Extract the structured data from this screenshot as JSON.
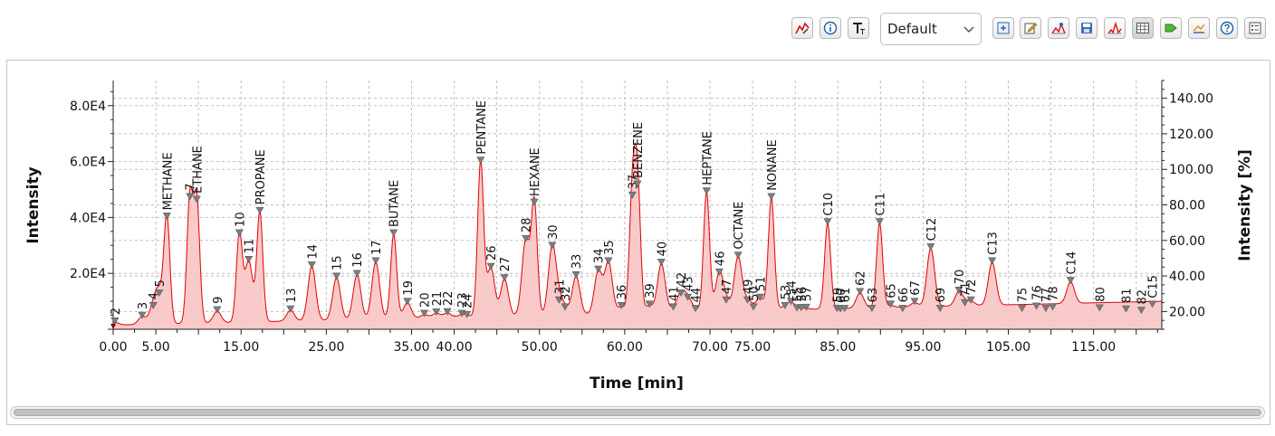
{
  "toolbar": {
    "left_icons": [
      "chart-settings-icon",
      "info-icon",
      "text-format-icon"
    ],
    "selected_view": "Default",
    "right_icons": [
      "add-window-icon",
      "edit-icon",
      "peak-detect-icon",
      "save-icon",
      "overlay-icon",
      "table-icon",
      "tag-icon",
      "compare-icon",
      "help-icon",
      "list-icon"
    ]
  },
  "colors": {
    "line": "#e00000",
    "fill": "#f8c4c4",
    "marker": "#7d7d7d",
    "grid": "#bfbfbf"
  },
  "chart_data": {
    "type": "area",
    "xlabel": "Time [min]",
    "ylabel": "Intensity",
    "y2label": "Intensity [%]",
    "xlim": [
      0,
      123
    ],
    "ylim": [
      0,
      89000
    ],
    "y2lim": [
      10,
      150
    ],
    "grid": true,
    "x_ticks": [
      "0.00",
      "5.00",
      "15.00",
      "25.00",
      "35.00",
      "40.00",
      "50.00",
      "60.00",
      "70.00",
      "75.00",
      "85.00",
      "95.00",
      "105.00",
      "115.00"
    ],
    "x_tick_values": [
      0,
      5,
      15,
      25,
      35,
      40,
      50,
      60,
      70,
      75,
      85,
      95,
      105,
      115
    ],
    "y_ticks": [
      "2.0E4",
      "4.0E4",
      "6.0E4",
      "8.0E4"
    ],
    "y_tick_values": [
      20000,
      40000,
      60000,
      80000
    ],
    "y2_ticks": [
      "20.00",
      "40.00",
      "60.00",
      "80.00",
      "100.00",
      "120.00",
      "140.00"
    ],
    "y2_tick_values": [
      20,
      40,
      60,
      80,
      100,
      120,
      140
    ],
    "baseline_start": 1500,
    "baseline_end": 10000,
    "peaks": [
      {
        "label": "2",
        "x": 0.2,
        "y": 2500
      },
      {
        "label": "3",
        "x": 3.4,
        "y": 4500
      },
      {
        "label": "4",
        "x": 4.7,
        "y": 8000
      },
      {
        "label": "5",
        "x": 5.4,
        "y": 12500
      },
      {
        "label": "METHANE",
        "x": 6.3,
        "y": 40000
      },
      {
        "label": "7",
        "x": 9.0,
        "y": 47000
      },
      {
        "label": "ETHANE",
        "x": 9.8,
        "y": 46000
      },
      {
        "label": "9",
        "x": 12.2,
        "y": 6500
      },
      {
        "label": "10",
        "x": 14.8,
        "y": 34000
      },
      {
        "label": "11",
        "x": 15.9,
        "y": 24500
      },
      {
        "label": "PROPANE",
        "x": 17.2,
        "y": 42000
      },
      {
        "label": "13",
        "x": 20.8,
        "y": 6800
      },
      {
        "label": "14",
        "x": 23.3,
        "y": 22500
      },
      {
        "label": "15",
        "x": 26.2,
        "y": 18500
      },
      {
        "label": "16",
        "x": 28.6,
        "y": 19500
      },
      {
        "label": "17",
        "x": 30.8,
        "y": 24000
      },
      {
        "label": "BUTANE",
        "x": 32.9,
        "y": 34000
      },
      {
        "label": "19",
        "x": 34.5,
        "y": 9500
      },
      {
        "label": "20",
        "x": 36.5,
        "y": 5200
      },
      {
        "label": "21",
        "x": 37.9,
        "y": 5700
      },
      {
        "label": "22",
        "x": 39.2,
        "y": 5800
      },
      {
        "label": "23",
        "x": 40.9,
        "y": 5200
      },
      {
        "label": "24",
        "x": 41.5,
        "y": 4800
      },
      {
        "label": "PENTANE",
        "x": 43.1,
        "y": 60000
      },
      {
        "label": "26",
        "x": 44.3,
        "y": 22000
      },
      {
        "label": "27",
        "x": 45.9,
        "y": 18000
      },
      {
        "label": "28",
        "x": 48.4,
        "y": 32000
      },
      {
        "label": "HEXANE",
        "x": 49.4,
        "y": 45000
      },
      {
        "label": "30",
        "x": 51.5,
        "y": 29500
      },
      {
        "label": "31",
        "x": 52.3,
        "y": 10000
      },
      {
        "label": "32",
        "x": 53.0,
        "y": 7500
      },
      {
        "label": "33",
        "x": 54.3,
        "y": 19000
      },
      {
        "label": "34",
        "x": 56.9,
        "y": 21000
      },
      {
        "label": "35",
        "x": 58.1,
        "y": 24000
      },
      {
        "label": "36",
        "x": 59.6,
        "y": 8000
      },
      {
        "label": "37",
        "x": 60.9,
        "y": 47500
      },
      {
        "label": "BENZENE",
        "x": 61.5,
        "y": 51500
      },
      {
        "label": "39",
        "x": 62.9,
        "y": 8500
      },
      {
        "label": "40",
        "x": 64.3,
        "y": 23500
      },
      {
        "label": "41",
        "x": 65.7,
        "y": 7500
      },
      {
        "label": "42",
        "x": 66.6,
        "y": 12500
      },
      {
        "label": "43",
        "x": 67.4,
        "y": 11000
      },
      {
        "label": "44",
        "x": 68.3,
        "y": 7000
      },
      {
        "label": "HEPTANE",
        "x": 69.6,
        "y": 49000
      },
      {
        "label": "46",
        "x": 71.1,
        "y": 20000
      },
      {
        "label": "47",
        "x": 71.9,
        "y": 10000
      },
      {
        "label": "OCTANE",
        "x": 73.3,
        "y": 26000
      },
      {
        "label": "49",
        "x": 74.4,
        "y": 10000
      },
      {
        "label": "50",
        "x": 75.1,
        "y": 7500
      },
      {
        "label": "51",
        "x": 75.9,
        "y": 11000
      },
      {
        "label": "NONANE",
        "x": 77.2,
        "y": 47000
      },
      {
        "label": "53",
        "x": 78.8,
        "y": 8000
      },
      {
        "label": "54",
        "x": 79.5,
        "y": 9500
      },
      {
        "label": "55",
        "x": 80.2,
        "y": 7200
      },
      {
        "label": "56",
        "x": 80.7,
        "y": 7300
      },
      {
        "label": "57",
        "x": 81.3,
        "y": 7400
      },
      {
        "label": "C10",
        "x": 83.8,
        "y": 38000
      },
      {
        "label": "59",
        "x": 84.9,
        "y": 7000
      },
      {
        "label": "60",
        "x": 85.3,
        "y": 6800
      },
      {
        "label": "61",
        "x": 85.8,
        "y": 7000
      },
      {
        "label": "62",
        "x": 87.6,
        "y": 13000
      },
      {
        "label": "63",
        "x": 89.0,
        "y": 7000
      },
      {
        "label": "C11",
        "x": 89.9,
        "y": 38000
      },
      {
        "label": "65",
        "x": 91.2,
        "y": 8500
      },
      {
        "label": "66",
        "x": 92.6,
        "y": 7000
      },
      {
        "label": "67",
        "x": 94.0,
        "y": 9500
      },
      {
        "label": "C12",
        "x": 95.9,
        "y": 29000
      },
      {
        "label": "69",
        "x": 97.0,
        "y": 7000
      },
      {
        "label": "70",
        "x": 99.2,
        "y": 13500
      },
      {
        "label": "71",
        "x": 99.9,
        "y": 9000
      },
      {
        "label": "72",
        "x": 100.6,
        "y": 10000
      },
      {
        "label": "C13",
        "x": 103.1,
        "y": 24000
      },
      {
        "label": "75",
        "x": 106.6,
        "y": 7000
      },
      {
        "label": "76",
        "x": 108.3,
        "y": 7800
      },
      {
        "label": "77",
        "x": 109.4,
        "y": 7000
      },
      {
        "label": "78",
        "x": 110.2,
        "y": 7500
      },
      {
        "label": "C14",
        "x": 112.3,
        "y": 17000
      },
      {
        "label": "80",
        "x": 115.7,
        "y": 7200
      },
      {
        "label": "81",
        "x": 118.8,
        "y": 6800
      },
      {
        "label": "82",
        "x": 120.6,
        "y": 6300
      },
      {
        "label": "C15",
        "x": 121.9,
        "y": 8500
      }
    ]
  }
}
